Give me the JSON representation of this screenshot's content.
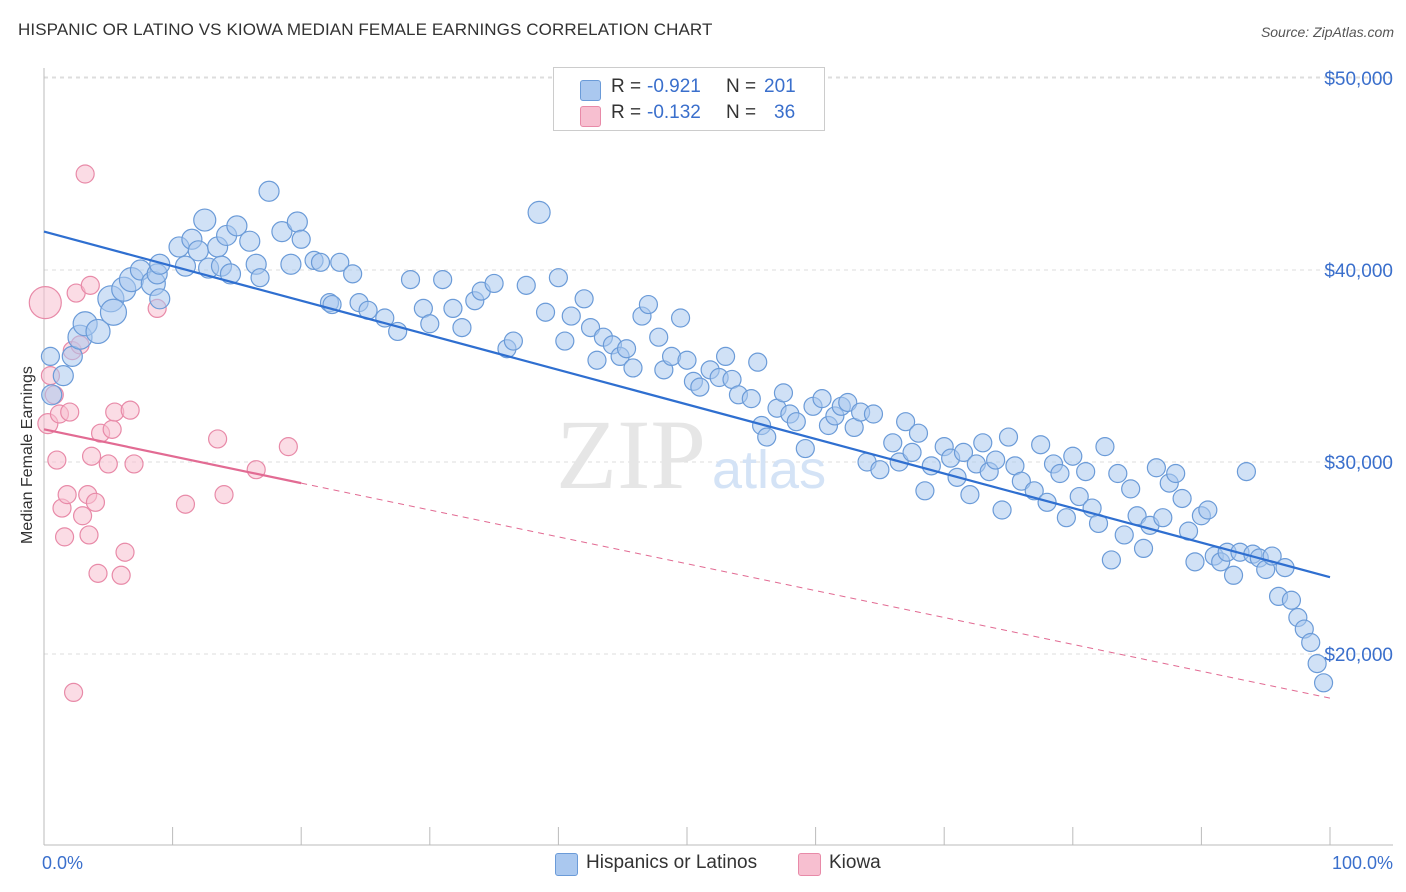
{
  "title": "HISPANIC OR LATINO VS KIOWA MEDIAN FEMALE EARNINGS CORRELATION CHART",
  "source": "Source: ZipAtlas.com",
  "watermark": {
    "zip": "ZIP",
    "atlas": "atlas"
  },
  "colors": {
    "blue_fill": "#aac8ef",
    "blue_stroke": "#6b9bd8",
    "blue_line": "#2f6fd0",
    "pink_fill": "#f7bfd0",
    "pink_stroke": "#e88aa8",
    "pink_line": "#e26b93",
    "tick_label": "#3a6fcc",
    "grid": "#dddddd"
  },
  "stats": [
    {
      "r_label": "R =",
      "r_value": "-0.921",
      "n_label": "N =",
      "n_value": "201",
      "swatch": "blue"
    },
    {
      "r_label": "R =",
      "r_value": "-0.132",
      "n_label": "N =",
      "n_value": "36",
      "swatch": "pink"
    }
  ],
  "legend": [
    {
      "label": "Hispanics or Latinos",
      "swatch": "blue"
    },
    {
      "label": "Kiowa",
      "swatch": "pink"
    }
  ],
  "chart_data": {
    "type": "scatter",
    "title": "HISPANIC OR LATINO VS KIOWA MEDIAN FEMALE EARNINGS CORRELATION CHART",
    "xlabel": "",
    "ylabel": "Median Female Earnings",
    "xlim": [
      0,
      100
    ],
    "ylim": [
      10000,
      51000
    ],
    "x_tick_labels": [
      "0.0%",
      "100.0%"
    ],
    "y_ticks": [
      20000,
      30000,
      40000,
      50000
    ],
    "y_tick_labels": [
      "$20,000",
      "$30,000",
      "$40,000",
      "$50,000"
    ],
    "grid": true,
    "legend_position": "bottom-center",
    "series": [
      {
        "name": "Hispanics or Latinos",
        "color": "blue",
        "trend": {
          "x": [
            0,
            100
          ],
          "y": [
            42000,
            24000
          ]
        },
        "points": [
          [
            0.5,
            35.5,
            9
          ],
          [
            0.6,
            33.5,
            10
          ],
          [
            1.5,
            34.5,
            10
          ],
          [
            2.2,
            35.5,
            10
          ],
          [
            2.8,
            36.5,
            12
          ],
          [
            3.2,
            37.2,
            12
          ],
          [
            4.2,
            36.8,
            12
          ],
          [
            5.2,
            38.5,
            13
          ],
          [
            5.4,
            37.8,
            13
          ],
          [
            6.2,
            39,
            12
          ],
          [
            6.8,
            39.5,
            12
          ],
          [
            7.5,
            40,
            10
          ],
          [
            8.5,
            39.3,
            12
          ],
          [
            8.8,
            39.8,
            10
          ],
          [
            9,
            40.3,
            10
          ],
          [
            9,
            38.5,
            10
          ],
          [
            10.5,
            41.2,
            10
          ],
          [
            11,
            40.2,
            10
          ],
          [
            11.5,
            41.6,
            10
          ],
          [
            12,
            41,
            10
          ],
          [
            12.5,
            42.6,
            11
          ],
          [
            12.8,
            40.1,
            10
          ],
          [
            13.5,
            41.2,
            10
          ],
          [
            13.8,
            40.2,
            10
          ],
          [
            14.2,
            41.8,
            10
          ],
          [
            14.5,
            39.8,
            10
          ],
          [
            15,
            42.3,
            10
          ],
          [
            16,
            41.5,
            10
          ],
          [
            16.5,
            40.3,
            10
          ],
          [
            16.8,
            39.6,
            9
          ],
          [
            17.5,
            44.1,
            10
          ],
          [
            18.5,
            42,
            10
          ],
          [
            19.2,
            40.3,
            10
          ],
          [
            19.7,
            42.5,
            10
          ],
          [
            20,
            41.6,
            9
          ],
          [
            21,
            40.5,
            9
          ],
          [
            21.5,
            40.4,
            9
          ],
          [
            22.2,
            38.3,
            9
          ],
          [
            22.4,
            38.2,
            9
          ],
          [
            23,
            40.4,
            9
          ],
          [
            24,
            39.8,
            9
          ],
          [
            24.5,
            38.3,
            9
          ],
          [
            25.2,
            37.9,
            9
          ],
          [
            26.5,
            37.5,
            9
          ],
          [
            27.5,
            36.8,
            9
          ],
          [
            28.5,
            39.5,
            9
          ],
          [
            29.5,
            38,
            9
          ],
          [
            30,
            37.2,
            9
          ],
          [
            31,
            39.5,
            9
          ],
          [
            31.8,
            38,
            9
          ],
          [
            32.5,
            37,
            9
          ],
          [
            33.5,
            38.4,
            9
          ],
          [
            34,
            38.9,
            9
          ],
          [
            35,
            39.3,
            9
          ],
          [
            36,
            35.9,
            9
          ],
          [
            36.5,
            36.3,
            9
          ],
          [
            37.5,
            39.2,
            9
          ],
          [
            38.5,
            43,
            11
          ],
          [
            39,
            37.8,
            9
          ],
          [
            40,
            39.6,
            9
          ],
          [
            40.5,
            36.3,
            9
          ],
          [
            41,
            37.6,
            9
          ],
          [
            42,
            38.5,
            9
          ],
          [
            42.5,
            37,
            9
          ],
          [
            43,
            35.3,
            9
          ],
          [
            43.5,
            36.5,
            9
          ],
          [
            44.2,
            36.1,
            9
          ],
          [
            44.8,
            35.5,
            9
          ],
          [
            45.3,
            35.9,
            9
          ],
          [
            45.8,
            34.9,
            9
          ],
          [
            46.5,
            37.6,
            9
          ],
          [
            47,
            38.2,
            9
          ],
          [
            47.8,
            36.5,
            9
          ],
          [
            48.2,
            34.8,
            9
          ],
          [
            48.8,
            35.5,
            9
          ],
          [
            49.5,
            37.5,
            9
          ],
          [
            50,
            35.3,
            9
          ],
          [
            50.5,
            34.2,
            9
          ],
          [
            51,
            33.9,
            9
          ],
          [
            51.8,
            34.8,
            9
          ],
          [
            52.5,
            34.4,
            9
          ],
          [
            53,
            35.5,
            9
          ],
          [
            53.5,
            34.3,
            9
          ],
          [
            54,
            33.5,
            9
          ],
          [
            55,
            33.3,
            9
          ],
          [
            55.5,
            35.2,
            9
          ],
          [
            55.8,
            31.9,
            9
          ],
          [
            56.2,
            31.3,
            9
          ],
          [
            57,
            32.8,
            9
          ],
          [
            57.5,
            33.6,
            9
          ],
          [
            58,
            32.5,
            9
          ],
          [
            58.5,
            32.1,
            9
          ],
          [
            59.2,
            30.7,
            9
          ],
          [
            59.8,
            32.9,
            9
          ],
          [
            60.5,
            33.3,
            9
          ],
          [
            61,
            31.9,
            9
          ],
          [
            61.5,
            32.4,
            9
          ],
          [
            62,
            32.9,
            9
          ],
          [
            62.5,
            33.1,
            9
          ],
          [
            63,
            31.8,
            9
          ],
          [
            63.5,
            32.6,
            9
          ],
          [
            64,
            30,
            9
          ],
          [
            64.5,
            32.5,
            9
          ],
          [
            65,
            29.6,
            9
          ],
          [
            66,
            31,
            9
          ],
          [
            66.5,
            30,
            9
          ],
          [
            67,
            32.1,
            9
          ],
          [
            67.5,
            30.5,
            9
          ],
          [
            68,
            31.5,
            9
          ],
          [
            68.5,
            28.5,
            9
          ],
          [
            69,
            29.8,
            9
          ],
          [
            70,
            30.8,
            9
          ],
          [
            70.5,
            30.2,
            9
          ],
          [
            71,
            29.2,
            9
          ],
          [
            71.5,
            30.5,
            9
          ],
          [
            72,
            28.3,
            9
          ],
          [
            72.5,
            29.9,
            9
          ],
          [
            73,
            31,
            9
          ],
          [
            73.5,
            29.5,
            9
          ],
          [
            74,
            30.1,
            9
          ],
          [
            74.5,
            27.5,
            9
          ],
          [
            75,
            31.3,
            9
          ],
          [
            75.5,
            29.8,
            9
          ],
          [
            76,
            29,
            9
          ],
          [
            77,
            28.5,
            9
          ],
          [
            77.5,
            30.9,
            9
          ],
          [
            78,
            27.9,
            9
          ],
          [
            78.5,
            29.9,
            9
          ],
          [
            79,
            29.4,
            9
          ],
          [
            79.5,
            27.1,
            9
          ],
          [
            80,
            30.3,
            9
          ],
          [
            80.5,
            28.2,
            9
          ],
          [
            81,
            29.5,
            9
          ],
          [
            81.5,
            27.6,
            9
          ],
          [
            82,
            26.8,
            9
          ],
          [
            82.5,
            30.8,
            9
          ],
          [
            83,
            24.9,
            9
          ],
          [
            83.5,
            29.4,
            9
          ],
          [
            84,
            26.2,
            9
          ],
          [
            84.5,
            28.6,
            9
          ],
          [
            85,
            27.2,
            9
          ],
          [
            85.5,
            25.5,
            9
          ],
          [
            86,
            26.7,
            9
          ],
          [
            86.5,
            29.7,
            9
          ],
          [
            87,
            27.1,
            9
          ],
          [
            87.5,
            28.9,
            9
          ],
          [
            88,
            29.4,
            9
          ],
          [
            88.5,
            28.1,
            9
          ],
          [
            89,
            26.4,
            9
          ],
          [
            89.5,
            24.8,
            9
          ],
          [
            90,
            27.2,
            9
          ],
          [
            90.5,
            27.5,
            9
          ],
          [
            91,
            25.1,
            9
          ],
          [
            91.5,
            24.8,
            9
          ],
          [
            92,
            25.3,
            9
          ],
          [
            92.5,
            24.1,
            9
          ],
          [
            93,
            25.3,
            9
          ],
          [
            93.5,
            29.5,
            9
          ],
          [
            94,
            25.2,
            9
          ],
          [
            94.5,
            25,
            9
          ],
          [
            95,
            24.4,
            9
          ],
          [
            95.5,
            25.1,
            9
          ],
          [
            96,
            23,
            9
          ],
          [
            96.5,
            24.5,
            9
          ],
          [
            97,
            22.8,
            9
          ],
          [
            97.5,
            21.9,
            9
          ],
          [
            98,
            21.3,
            9
          ],
          [
            98.5,
            20.6,
            9
          ],
          [
            99,
            19.5,
            9
          ],
          [
            99.5,
            18.5,
            9
          ]
        ]
      },
      {
        "name": "Kiowa",
        "color": "pink",
        "trend": {
          "x": [
            0,
            20
          ],
          "y": [
            31700,
            28900
          ]
        },
        "trend_extension": {
          "x": [
            20,
            100
          ],
          "y": [
            28900,
            17700
          ]
        },
        "points": [
          [
            0.1,
            38.3,
            16
          ],
          [
            0.3,
            32,
            10
          ],
          [
            0.5,
            34.5,
            9
          ],
          [
            0.8,
            33.5,
            9
          ],
          [
            1,
            30.1,
            9
          ],
          [
            1.2,
            32.5,
            9
          ],
          [
            1.4,
            27.6,
            9
          ],
          [
            1.6,
            26.1,
            9
          ],
          [
            1.8,
            28.3,
            9
          ],
          [
            2,
            32.6,
            9
          ],
          [
            2.2,
            35.8,
            9
          ],
          [
            2.3,
            18,
            9
          ],
          [
            2.5,
            38.8,
            9
          ],
          [
            2.8,
            36.1,
            9
          ],
          [
            3,
            27.2,
            9
          ],
          [
            3.2,
            45,
            9
          ],
          [
            3.4,
            28.3,
            9
          ],
          [
            3.5,
            26.2,
            9
          ],
          [
            3.6,
            39.2,
            9
          ],
          [
            3.7,
            30.3,
            9
          ],
          [
            4,
            27.9,
            9
          ],
          [
            4.2,
            24.2,
            9
          ],
          [
            4.4,
            31.5,
            9
          ],
          [
            5,
            29.9,
            9
          ],
          [
            5.3,
            31.7,
            9
          ],
          [
            5.5,
            32.6,
            9
          ],
          [
            6,
            24.1,
            9
          ],
          [
            6.3,
            25.3,
            9
          ],
          [
            6.7,
            32.7,
            9
          ],
          [
            7,
            29.9,
            9
          ],
          [
            8.8,
            38,
            9
          ],
          [
            11,
            27.8,
            9
          ],
          [
            13.5,
            31.2,
            9
          ],
          [
            14,
            28.3,
            9
          ],
          [
            16.5,
            29.6,
            9
          ],
          [
            19,
            30.8,
            9
          ]
        ]
      }
    ]
  }
}
